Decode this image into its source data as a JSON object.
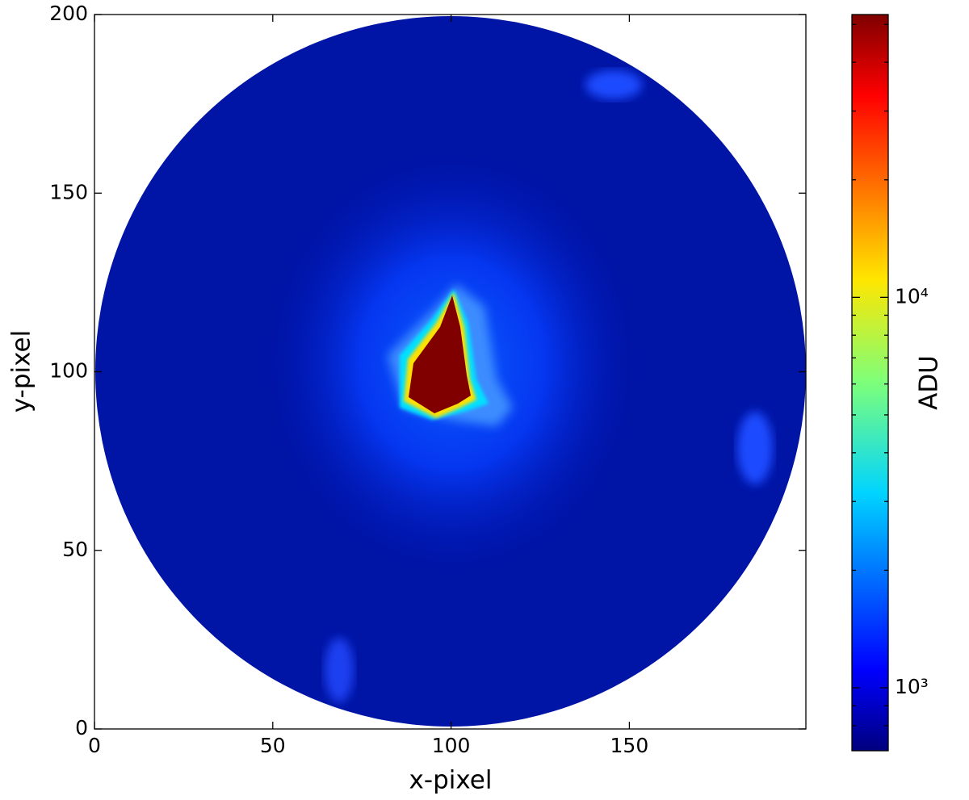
{
  "chart_data": {
    "type": "heatmap",
    "x_label": "x-pixel",
    "y_label": "y-pixel",
    "xlim": [
      0,
      199.5
    ],
    "ylim": [
      0,
      200
    ],
    "xticks": [
      0,
      50,
      100,
      150
    ],
    "yticks": [
      0,
      50,
      100,
      150,
      200
    ],
    "colorbar": {
      "label": "ADU",
      "scale": "log",
      "colormap": "jet",
      "clim": [
        690,
        53000
      ],
      "ticks": [
        {
          "value": 1000,
          "label": "10³"
        },
        {
          "value": 10000,
          "label": "10⁴"
        }
      ],
      "minor_ticks": [
        800,
        900,
        2000,
        3000,
        4000,
        5000,
        6000,
        7000,
        8000,
        9000,
        20000,
        30000,
        40000,
        50000
      ]
    }
  }
}
